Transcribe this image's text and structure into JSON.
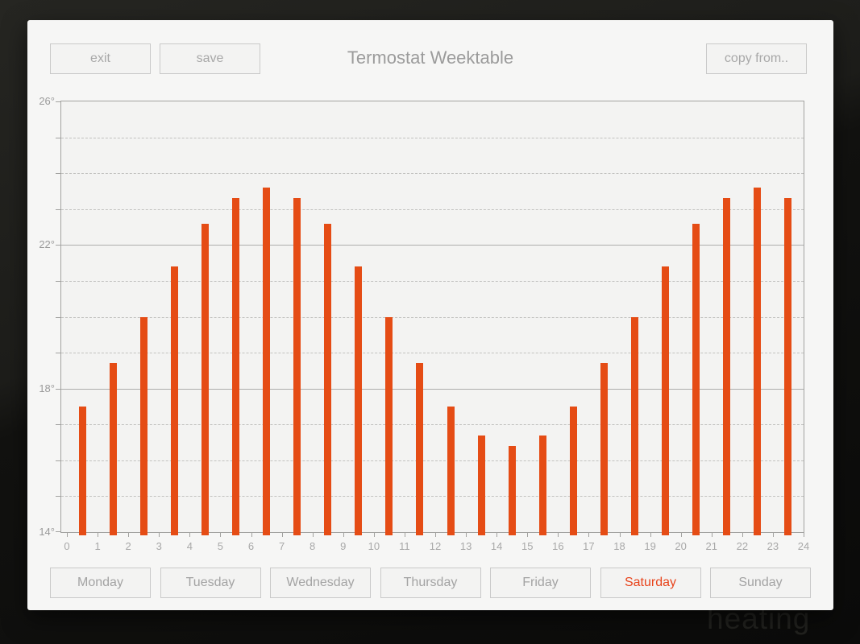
{
  "window": {
    "title": "Termostat Weektable",
    "buttons": {
      "exit": "exit",
      "save": "save",
      "copy_from": "copy from.."
    }
  },
  "background": {
    "behind_text": "heating"
  },
  "days": [
    {
      "label": "Monday",
      "active": false
    },
    {
      "label": "Tuesday",
      "active": false
    },
    {
      "label": "Wednesday",
      "active": false
    },
    {
      "label": "Thursday",
      "active": false
    },
    {
      "label": "Friday",
      "active": false
    },
    {
      "label": "Saturday",
      "active": true
    },
    {
      "label": "Sunday",
      "active": false
    }
  ],
  "colors": {
    "bar": "#e54c15",
    "active_day_text": "#e8441c",
    "muted_text": "#a8a8a8"
  },
  "chart_data": {
    "type": "bar",
    "categories": [
      0,
      1,
      2,
      3,
      4,
      5,
      6,
      7,
      8,
      9,
      10,
      11,
      12,
      13,
      14,
      15,
      16,
      17,
      18,
      19,
      20,
      21,
      22,
      23
    ],
    "values": [
      17.5,
      18.7,
      20.0,
      21.4,
      22.6,
      23.3,
      23.6,
      23.3,
      22.6,
      21.4,
      20.0,
      18.7,
      17.5,
      16.7,
      16.4,
      16.7,
      17.5,
      18.7,
      20.0,
      21.4,
      22.6,
      23.3,
      23.6,
      23.3
    ],
    "ylim": [
      14,
      26
    ],
    "xlim": [
      0,
      24
    ],
    "y_ticks": [
      {
        "value": 26,
        "label": "26°"
      },
      {
        "value": 22,
        "label": "22°"
      },
      {
        "value": 18,
        "label": "18°"
      },
      {
        "value": 14,
        "label": "14°"
      }
    ],
    "x_tick_labels": [
      "0",
      "1",
      "2",
      "3",
      "4",
      "5",
      "6",
      "7",
      "8",
      "9",
      "10",
      "11",
      "12",
      "13",
      "14",
      "15",
      "16",
      "17",
      "18",
      "19",
      "20",
      "21",
      "22",
      "23",
      "24"
    ],
    "gridlines": {
      "solid_at": [
        26,
        22,
        18,
        14
      ],
      "dashed_at": [
        25,
        24,
        23,
        21,
        20,
        19,
        17,
        16,
        15
      ]
    },
    "legend": "none"
  }
}
